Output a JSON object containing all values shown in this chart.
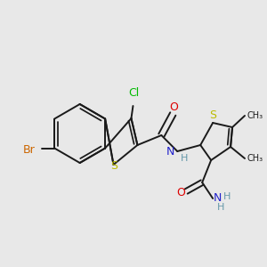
{
  "bg_color": "#e8e8e8",
  "bond_color": "#1a1a1a",
  "bond_width": 1.4,
  "figsize": [
    3.0,
    3.0
  ],
  "dpi": 100,
  "colors": {
    "Br": "#cc6600",
    "Cl": "#00bb00",
    "S": "#bbbb00",
    "N": "#2222cc",
    "O": "#dd0000",
    "H": "#6699aa",
    "C": "#1a1a1a"
  }
}
